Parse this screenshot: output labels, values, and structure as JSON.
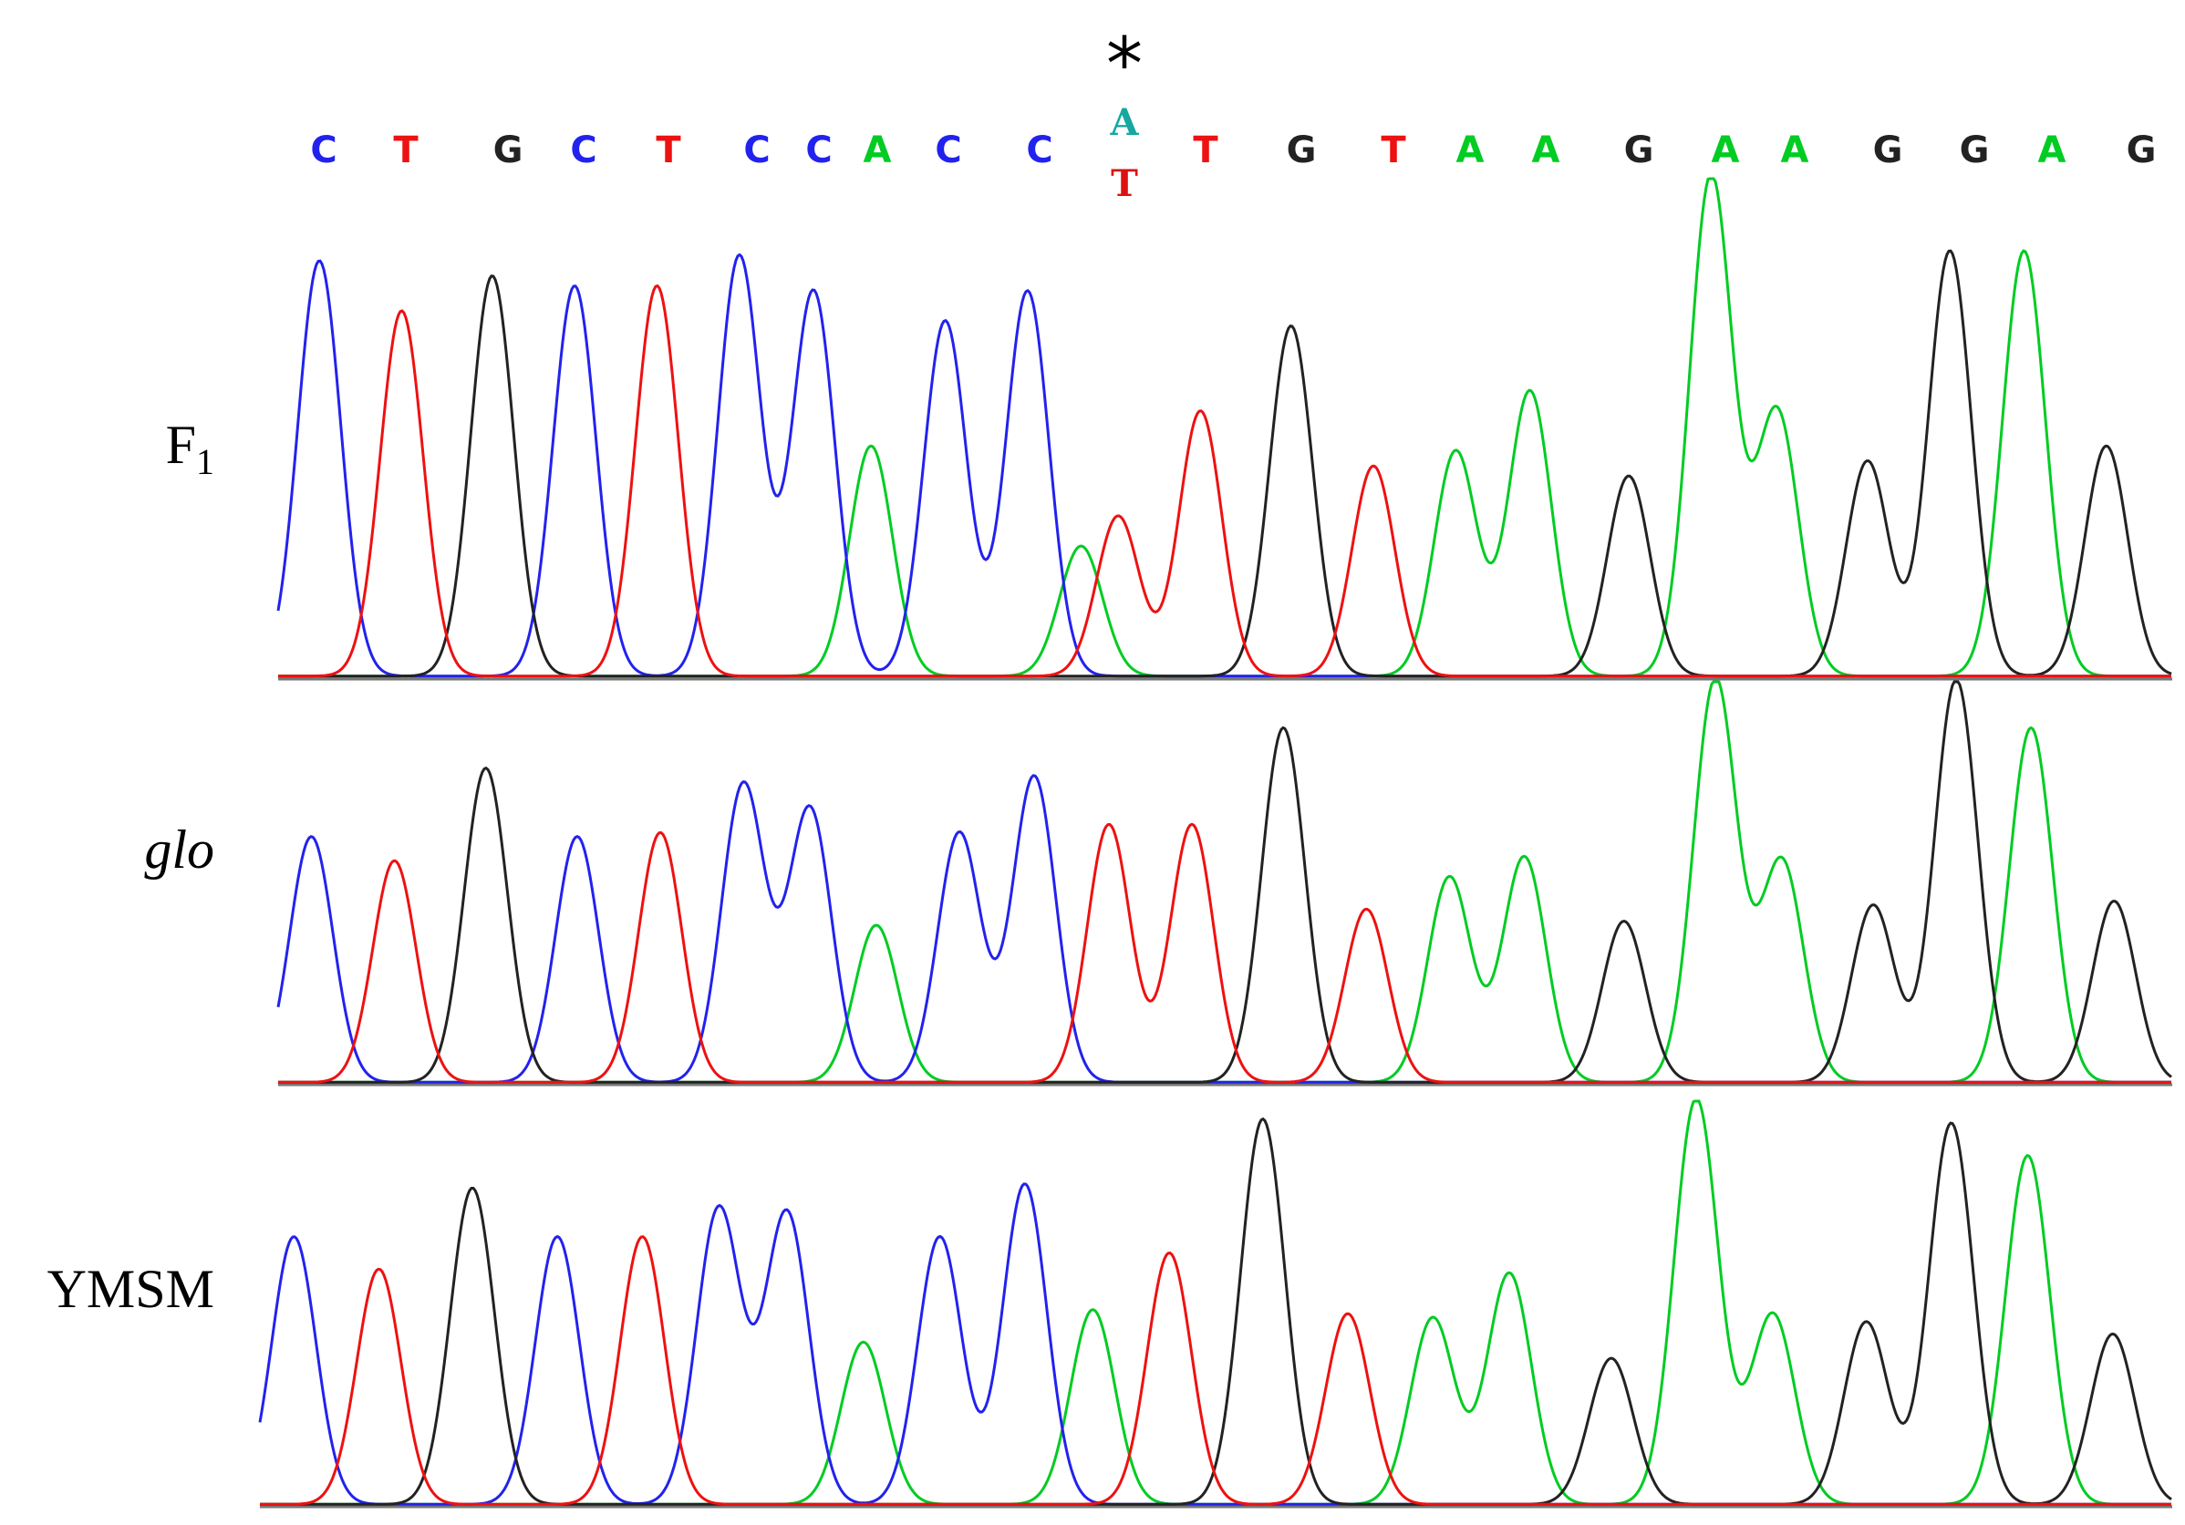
{
  "colors": {
    "A": "#00cc22",
    "C": "#2222ee",
    "G": "#222222",
    "T": "#ee1111",
    "het_A": "#14a8a0",
    "het_T": "#dd1111"
  },
  "header": {
    "bases": [
      "C",
      "T",
      "G",
      "C",
      "T",
      "C",
      "C",
      "A",
      "C",
      "C",
      "",
      "T",
      "G",
      "T",
      "A",
      "A",
      "G",
      "A",
      "A",
      "G",
      "G",
      "A",
      "G"
    ],
    "het_top": "A",
    "het_bottom": "T",
    "marker": "*"
  },
  "chart_data": {
    "type": "chromatogram",
    "x_unit": "base position",
    "y_unit": "relative signal",
    "ylim": [
      0,
      100
    ],
    "tracks": [
      {
        "label": "F",
        "label_sub": "1",
        "italic": false,
        "peaks": [
          {
            "base": "C",
            "x": 0.5,
            "y": 83
          },
          {
            "base": "T",
            "x": 1.5,
            "y": 73
          },
          {
            "base": "G",
            "x": 2.6,
            "y": 80
          },
          {
            "base": "C",
            "x": 3.6,
            "y": 78
          },
          {
            "base": "T",
            "x": 4.6,
            "y": 78
          },
          {
            "base": "C",
            "x": 5.6,
            "y": 84
          },
          {
            "base": "C",
            "x": 6.5,
            "y": 77
          },
          {
            "base": "A",
            "x": 7.2,
            "y": 46
          },
          {
            "base": "C",
            "x": 8.1,
            "y": 71
          },
          {
            "base": "C",
            "x": 9.1,
            "y": 77
          },
          {
            "base": "A",
            "x": 9.75,
            "y": 26
          },
          {
            "base": "T",
            "x": 10.2,
            "y": 32
          },
          {
            "base": "T",
            "x": 11.2,
            "y": 53
          },
          {
            "base": "G",
            "x": 12.3,
            "y": 70
          },
          {
            "base": "T",
            "x": 13.3,
            "y": 42
          },
          {
            "base": "A",
            "x": 14.3,
            "y": 45
          },
          {
            "base": "A",
            "x": 15.2,
            "y": 57
          },
          {
            "base": "G",
            "x": 16.4,
            "y": 40
          },
          {
            "base": "A",
            "x": 17.4,
            "y": 100
          },
          {
            "base": "A",
            "x": 18.2,
            "y": 53
          },
          {
            "base": "G",
            "x": 19.3,
            "y": 43
          },
          {
            "base": "G",
            "x": 20.3,
            "y": 85
          },
          {
            "base": "A",
            "x": 21.2,
            "y": 85
          },
          {
            "base": "G",
            "x": 22.2,
            "y": 46
          }
        ]
      },
      {
        "label": "glo",
        "label_sub": "",
        "italic": true,
        "peaks": [
          {
            "base": "C",
            "x": 0.4,
            "y": 61
          },
          {
            "base": "T",
            "x": 1.4,
            "y": 55
          },
          {
            "base": "G",
            "x": 2.5,
            "y": 78
          },
          {
            "base": "C",
            "x": 3.6,
            "y": 61
          },
          {
            "base": "T",
            "x": 4.6,
            "y": 62
          },
          {
            "base": "C",
            "x": 5.6,
            "y": 74
          },
          {
            "base": "C",
            "x": 6.4,
            "y": 68
          },
          {
            "base": "A",
            "x": 7.2,
            "y": 39
          },
          {
            "base": "C",
            "x": 8.2,
            "y": 62
          },
          {
            "base": "C",
            "x": 9.1,
            "y": 76
          },
          {
            "base": "T",
            "x": 10.0,
            "y": 64
          },
          {
            "base": "T",
            "x": 11.0,
            "y": 64
          },
          {
            "base": "G",
            "x": 12.1,
            "y": 88
          },
          {
            "base": "T",
            "x": 13.1,
            "y": 43
          },
          {
            "base": "A",
            "x": 14.1,
            "y": 51
          },
          {
            "base": "A",
            "x": 15.0,
            "y": 56
          },
          {
            "base": "G",
            "x": 16.2,
            "y": 40
          },
          {
            "base": "A",
            "x": 17.3,
            "y": 100
          },
          {
            "base": "A",
            "x": 18.1,
            "y": 55
          },
          {
            "base": "G",
            "x": 19.2,
            "y": 44
          },
          {
            "base": "G",
            "x": 20.2,
            "y": 100
          },
          {
            "base": "A",
            "x": 21.1,
            "y": 88
          },
          {
            "base": "G",
            "x": 22.1,
            "y": 45
          }
        ]
      },
      {
        "label": "YMSM",
        "label_sub": "",
        "italic": false,
        "peaks": [
          {
            "base": "C",
            "x": 0.4,
            "y": 66
          },
          {
            "base": "T",
            "x": 1.4,
            "y": 58
          },
          {
            "base": "G",
            "x": 2.5,
            "y": 78
          },
          {
            "base": "C",
            "x": 3.5,
            "y": 66
          },
          {
            "base": "T",
            "x": 4.5,
            "y": 66
          },
          {
            "base": "C",
            "x": 5.4,
            "y": 73
          },
          {
            "base": "C",
            "x": 6.2,
            "y": 72
          },
          {
            "base": "A",
            "x": 7.1,
            "y": 40
          },
          {
            "base": "C",
            "x": 8.0,
            "y": 66
          },
          {
            "base": "C",
            "x": 9.0,
            "y": 79
          },
          {
            "base": "A",
            "x": 9.8,
            "y": 48
          },
          {
            "base": "T",
            "x": 10.7,
            "y": 62
          },
          {
            "base": "G",
            "x": 11.8,
            "y": 95
          },
          {
            "base": "T",
            "x": 12.8,
            "y": 47
          },
          {
            "base": "A",
            "x": 13.8,
            "y": 46
          },
          {
            "base": "A",
            "x": 14.7,
            "y": 57
          },
          {
            "base": "G",
            "x": 15.9,
            "y": 36
          },
          {
            "base": "A",
            "x": 16.9,
            "y": 100
          },
          {
            "base": "A",
            "x": 17.8,
            "y": 47
          },
          {
            "base": "G",
            "x": 18.9,
            "y": 45
          },
          {
            "base": "G",
            "x": 19.9,
            "y": 94
          },
          {
            "base": "A",
            "x": 20.8,
            "y": 86
          },
          {
            "base": "G",
            "x": 21.8,
            "y": 42
          }
        ]
      }
    ]
  }
}
